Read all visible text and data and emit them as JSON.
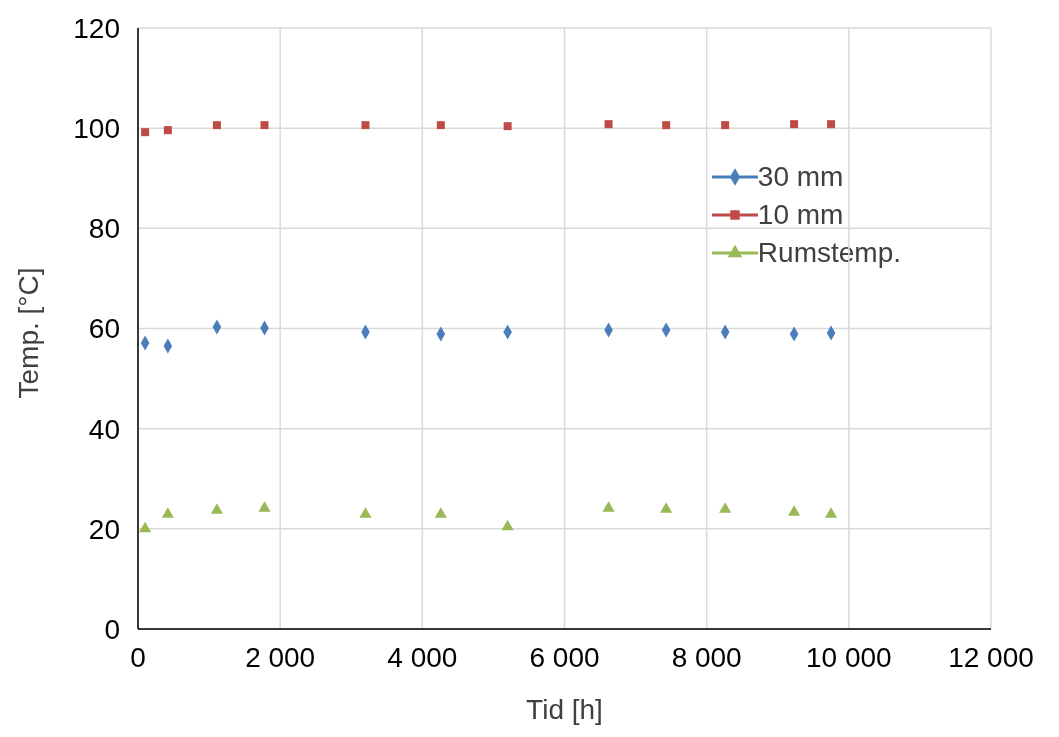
{
  "chart_data": {
    "type": "scatter",
    "xlabel": "Tid [h]",
    "ylabel": "Temp. [°C]",
    "xlim": [
      0,
      12000
    ],
    "xticks": [
      0,
      {
        "value": 2000,
        "label": "2 000"
      },
      {
        "value": 4000,
        "label": "4 000"
      },
      {
        "value": 6000,
        "label": "6 000"
      },
      {
        "value": 8000,
        "label": "8 000"
      },
      {
        "value": 10000,
        "label": "10 000"
      },
      {
        "value": 12000,
        "label": "12 000"
      }
    ],
    "ylim": [
      0,
      120
    ],
    "yticks": [
      0,
      20,
      40,
      60,
      80,
      100,
      120
    ],
    "grid": true,
    "legend": "top right",
    "x": [
      100,
      420,
      1110,
      1780,
      3200,
      4260,
      5200,
      6620,
      7430,
      8260,
      9230,
      9750
    ],
    "series": [
      {
        "name": "30 mm",
        "color": "#4a7ebb",
        "marker": "diamond",
        "values": [
          57.1,
          56.5,
          60.3,
          60.1,
          59.3,
          58.9,
          59.3,
          59.7,
          59.7,
          59.3,
          58.9,
          59.1
        ]
      },
      {
        "name": "10 mm",
        "color": "#be4b48",
        "marker": "square",
        "values": [
          99.2,
          99.6,
          100.6,
          100.6,
          100.6,
          100.6,
          100.4,
          100.8,
          100.6,
          100.6,
          100.8,
          100.8
        ]
      },
      {
        "name": "Rumstemp.",
        "color": "#98b954",
        "marker": "triangle",
        "values": [
          20.0,
          22.9,
          23.7,
          24.1,
          22.9,
          22.9,
          20.4,
          24.1,
          23.9,
          23.9,
          23.3,
          22.9
        ]
      }
    ]
  }
}
